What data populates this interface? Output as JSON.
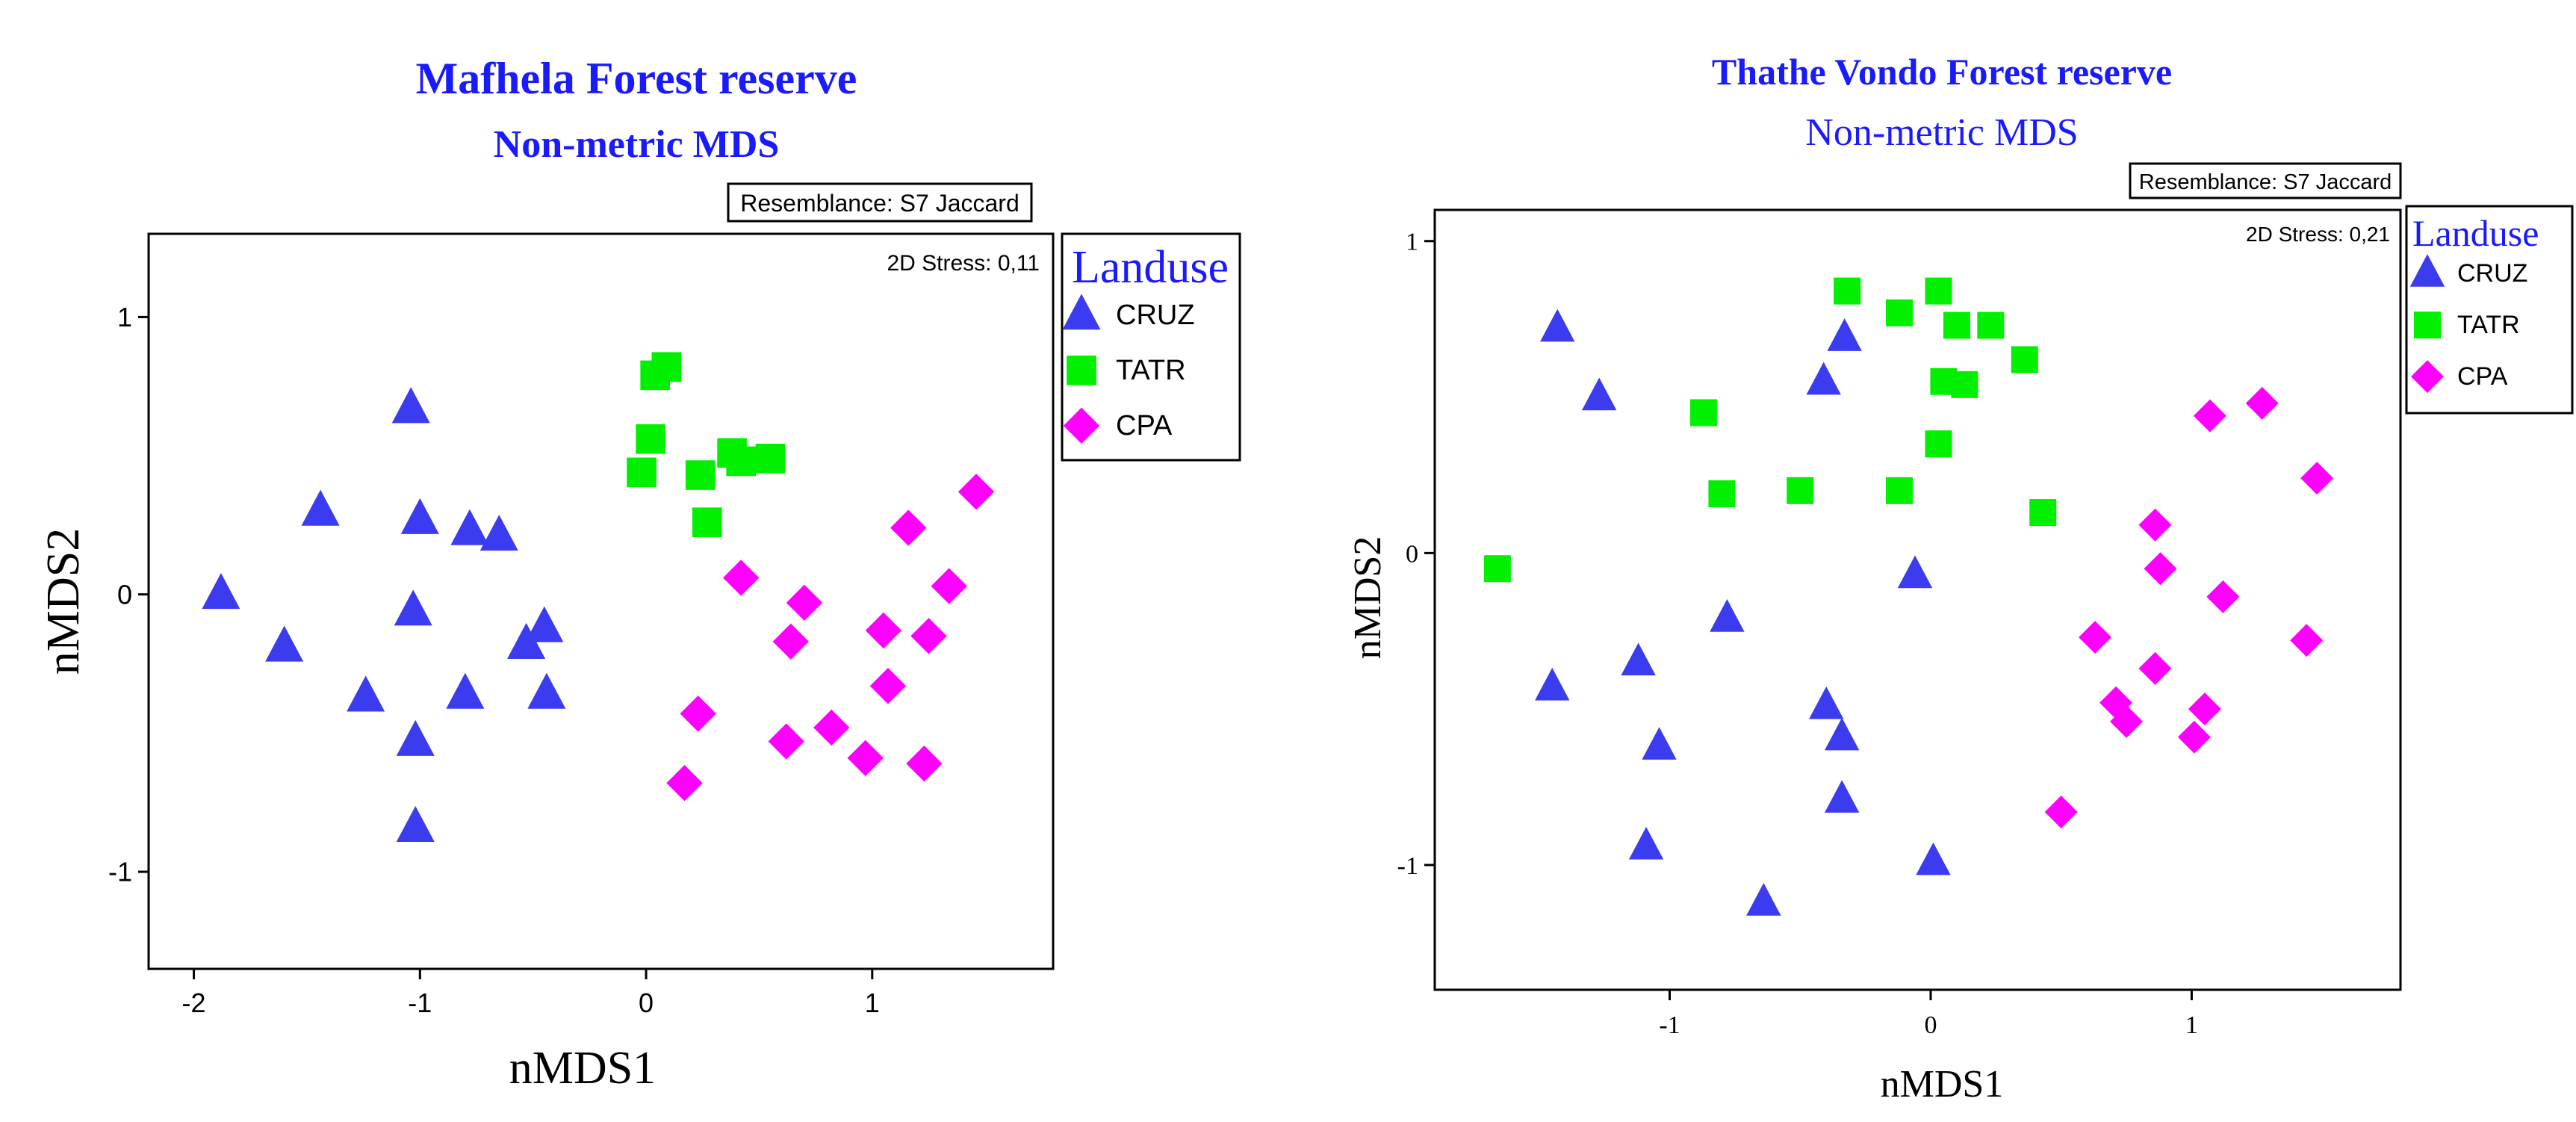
{
  "chart_data": [
    {
      "type": "scatter",
      "title": "Mafhela Forest reserve",
      "subtitle": "Non-metric MDS",
      "xlabel": "nMDS1",
      "ylabel": "nMDS2",
      "xlim": [
        -2.2,
        1.8
      ],
      "ylim": [
        -1.35,
        1.3
      ],
      "xticks": [
        -2,
        -1,
        0,
        1
      ],
      "yticks": [
        -1,
        0,
        1
      ],
      "xtick_labels": [
        "-2",
        "-1",
        "0",
        "1"
      ],
      "ytick_labels": [
        "-1",
        "0",
        "1"
      ],
      "resemblance": "Resemblance: S7 Jaccard",
      "stress": "2D Stress: 0,11",
      "legend_title": "Landuse",
      "legend_position": "outside-right",
      "series": [
        {
          "name": "CRUZ",
          "marker": "triangle",
          "color": "#3b3bf0",
          "points": [
            [
              -1.88,
              0.0
            ],
            [
              -1.6,
              -0.19
            ],
            [
              -1.44,
              0.3
            ],
            [
              -1.24,
              -0.37
            ],
            [
              -1.04,
              0.67
            ],
            [
              -1.03,
              -0.06
            ],
            [
              -1.0,
              0.27
            ],
            [
              -1.02,
              -0.53
            ],
            [
              -1.02,
              -0.84
            ],
            [
              -0.8,
              -0.36
            ],
            [
              -0.78,
              0.23
            ],
            [
              -0.65,
              0.21
            ],
            [
              -0.53,
              -0.18
            ],
            [
              -0.45,
              -0.12
            ],
            [
              -0.44,
              -0.36
            ]
          ]
        },
        {
          "name": "TATR",
          "marker": "square",
          "color": "#00f000",
          "points": [
            [
              0.04,
              0.79
            ],
            [
              0.09,
              0.82
            ],
            [
              0.02,
              0.56
            ],
            [
              -0.02,
              0.44
            ],
            [
              0.24,
              0.43
            ],
            [
              0.27,
              0.26
            ],
            [
              0.38,
              0.51
            ],
            [
              0.42,
              0.48
            ],
            [
              0.55,
              0.49
            ]
          ]
        },
        {
          "name": "CPA",
          "marker": "diamond",
          "color": "#ff00ff",
          "points": [
            [
              0.42,
              0.06
            ],
            [
              0.7,
              -0.03
            ],
            [
              0.64,
              -0.17
            ],
            [
              0.23,
              -0.43
            ],
            [
              0.17,
              -0.68
            ],
            [
              0.62,
              -0.53
            ],
            [
              0.82,
              -0.48
            ],
            [
              0.97,
              -0.59
            ],
            [
              1.05,
              -0.13
            ],
            [
              1.07,
              -0.33
            ],
            [
              1.16,
              0.24
            ],
            [
              1.23,
              -0.61
            ],
            [
              1.25,
              -0.15
            ],
            [
              1.34,
              0.03
            ],
            [
              1.46,
              0.37
            ]
          ]
        }
      ]
    },
    {
      "type": "scatter",
      "title": "Thathe Vondo Forest reserve",
      "subtitle": "Non-metric MDS",
      "xlabel": "nMDS1",
      "ylabel": "nMDS2",
      "xlim": [
        -1.9,
        1.8
      ],
      "ylim": [
        -1.4,
        1.1
      ],
      "xticks": [
        -1,
        0,
        1
      ],
      "yticks": [
        -1,
        0,
        1
      ],
      "xtick_labels": [
        "-1",
        "0",
        "1"
      ],
      "ytick_labels": [
        "-1",
        "0",
        "1"
      ],
      "resemblance": "Resemblance: S7 Jaccard",
      "stress": "2D Stress: 0,21",
      "legend_title": "Landuse",
      "legend_position": "outside-right",
      "series": [
        {
          "name": "CRUZ",
          "marker": "triangle",
          "color": "#3b3bf0",
          "points": [
            [
              -1.43,
              0.72
            ],
            [
              -1.27,
              0.5
            ],
            [
              -1.45,
              -0.43
            ],
            [
              -1.12,
              -0.35
            ],
            [
              -1.04,
              -0.62
            ],
            [
              -1.09,
              -0.94
            ],
            [
              -0.78,
              -0.21
            ],
            [
              -0.64,
              -1.12
            ],
            [
              -0.41,
              0.55
            ],
            [
              -0.4,
              -0.49
            ],
            [
              -0.33,
              0.69
            ],
            [
              -0.34,
              -0.59
            ],
            [
              -0.34,
              -0.79
            ],
            [
              -0.06,
              -0.07
            ],
            [
              0.01,
              -0.99
            ]
          ]
        },
        {
          "name": "TATR",
          "marker": "square",
          "color": "#00f000",
          "points": [
            [
              -1.66,
              -0.05
            ],
            [
              -0.87,
              0.45
            ],
            [
              -0.8,
              0.19
            ],
            [
              -0.5,
              0.2
            ],
            [
              -0.32,
              0.84
            ],
            [
              -0.12,
              0.77
            ],
            [
              -0.12,
              0.2
            ],
            [
              0.03,
              0.84
            ],
            [
              0.03,
              0.35
            ],
            [
              0.05,
              0.55
            ],
            [
              0.1,
              0.73
            ],
            [
              0.13,
              0.54
            ],
            [
              0.23,
              0.73
            ],
            [
              0.36,
              0.62
            ],
            [
              0.43,
              0.13
            ]
          ]
        },
        {
          "name": "CPA",
          "marker": "diamond",
          "color": "#ff00ff",
          "points": [
            [
              0.63,
              -0.27
            ],
            [
              0.71,
              -0.48
            ],
            [
              0.75,
              -0.54
            ],
            [
              0.86,
              0.09
            ],
            [
              0.86,
              -0.37
            ],
            [
              0.88,
              -0.05
            ],
            [
              0.5,
              -0.83
            ],
            [
              1.01,
              -0.59
            ],
            [
              1.05,
              -0.5
            ],
            [
              1.07,
              0.44
            ],
            [
              1.12,
              -0.14
            ],
            [
              1.27,
              0.48
            ],
            [
              1.44,
              -0.28
            ],
            [
              1.48,
              0.24
            ]
          ]
        }
      ]
    }
  ]
}
